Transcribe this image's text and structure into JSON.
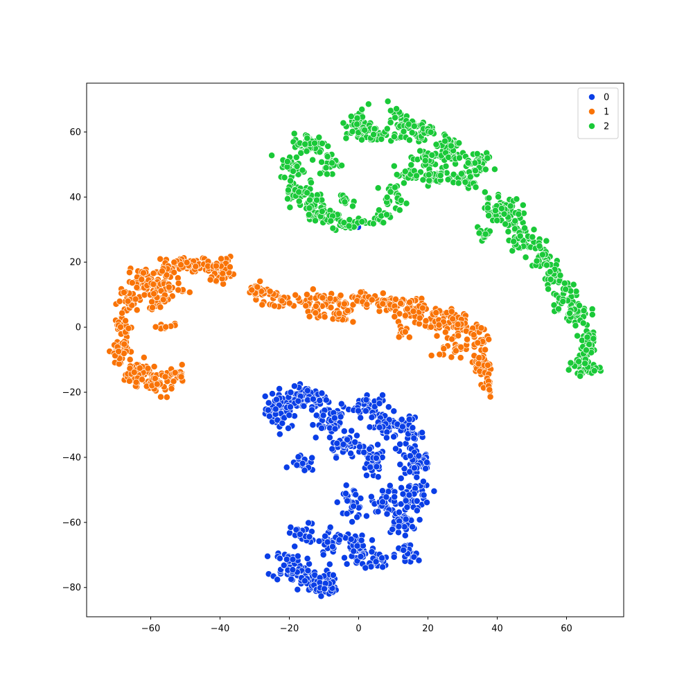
{
  "chart_data": {
    "type": "scatter",
    "title": "",
    "xlabel": "",
    "ylabel": "",
    "xlim": [
      -78.5,
      76.5
    ],
    "ylim": [
      -89,
      75
    ],
    "xticks": [
      -60,
      -40,
      -20,
      0,
      20,
      40,
      60
    ],
    "yticks": [
      -80,
      -60,
      -40,
      -20,
      0,
      20,
      40,
      60
    ],
    "grid": false,
    "legend_position": "top-right",
    "series": [
      {
        "name": "0",
        "color": "#0a3ee6",
        "clusters": [
          {
            "x": -22,
            "y": -25,
            "rx": 4,
            "ry": 5,
            "n": 60
          },
          {
            "x": -15,
            "y": -22,
            "rx": 5,
            "ry": 3,
            "n": 60
          },
          {
            "x": -8,
            "y": -28,
            "rx": 4,
            "ry": 4,
            "n": 45
          },
          {
            "x": -4,
            "y": -36,
            "rx": 4,
            "ry": 3,
            "n": 45
          },
          {
            "x": 2,
            "y": -24,
            "rx": 4,
            "ry": 3,
            "n": 40
          },
          {
            "x": 8,
            "y": -30,
            "rx": 4,
            "ry": 3,
            "n": 35
          },
          {
            "x": 14,
            "y": -33,
            "rx": 4,
            "ry": 4,
            "n": 40
          },
          {
            "x": 17,
            "y": -42,
            "rx": 4,
            "ry": 4,
            "n": 45
          },
          {
            "x": 4,
            "y": -42,
            "rx": 3,
            "ry": 4,
            "n": 35
          },
          {
            "x": -16,
            "y": -42,
            "rx": 3,
            "ry": 2,
            "n": 20
          },
          {
            "x": 16,
            "y": -52,
            "rx": 4,
            "ry": 4,
            "n": 50
          },
          {
            "x": 8,
            "y": -53,
            "rx": 3,
            "ry": 3,
            "n": 30
          },
          {
            "x": -2,
            "y": -54,
            "rx": 3,
            "ry": 4,
            "n": 35
          },
          {
            "x": 12,
            "y": -60,
            "rx": 4,
            "ry": 3,
            "n": 35
          },
          {
            "x": 14,
            "y": -70,
            "rx": 3,
            "ry": 3,
            "n": 25
          },
          {
            "x": 0,
            "y": -68,
            "rx": 4,
            "ry": 5,
            "n": 55
          },
          {
            "x": -8,
            "y": -66,
            "rx": 3,
            "ry": 4,
            "n": 30
          },
          {
            "x": 5,
            "y": -72,
            "rx": 3,
            "ry": 2,
            "n": 20
          },
          {
            "x": -20,
            "y": -73,
            "rx": 4,
            "ry": 4,
            "n": 50
          },
          {
            "x": -14,
            "y": -78,
            "rx": 5,
            "ry": 3,
            "n": 50
          },
          {
            "x": -10,
            "y": -80,
            "rx": 3,
            "ry": 2,
            "n": 30
          },
          {
            "x": -16,
            "y": -64,
            "rx": 3,
            "ry": 3,
            "n": 25
          },
          {
            "x": 0,
            "y": 31,
            "rx": 0.3,
            "ry": 0.3,
            "n": 2
          }
        ]
      },
      {
        "name": "1",
        "color": "#f97306",
        "clusters": [
          {
            "x": -48,
            "y": 19,
            "rx": 6,
            "ry": 2,
            "n": 60
          },
          {
            "x": -40,
            "y": 18,
            "rx": 3,
            "ry": 3,
            "n": 45
          },
          {
            "x": -56,
            "y": 17,
            "rx": 3,
            "ry": 3,
            "n": 30
          },
          {
            "x": -62,
            "y": 14,
            "rx": 4,
            "ry": 3,
            "n": 40
          },
          {
            "x": -66,
            "y": 8,
            "rx": 3,
            "ry": 3,
            "n": 30
          },
          {
            "x": -55,
            "y": 12,
            "rx": 4,
            "ry": 2,
            "n": 30
          },
          {
            "x": -58,
            "y": 8,
            "rx": 3,
            "ry": 2,
            "n": 20
          },
          {
            "x": -68,
            "y": 0,
            "rx": 2,
            "ry": 3,
            "n": 25
          },
          {
            "x": -69,
            "y": -7,
            "rx": 2,
            "ry": 3,
            "n": 40
          },
          {
            "x": -64,
            "y": -14,
            "rx": 3,
            "ry": 3,
            "n": 50
          },
          {
            "x": -58,
            "y": -17,
            "rx": 4,
            "ry": 3,
            "n": 55
          },
          {
            "x": -52,
            "y": -15,
            "rx": 2,
            "ry": 2,
            "n": 20
          },
          {
            "x": -56,
            "y": 0,
            "rx": 3,
            "ry": 1,
            "n": 10
          },
          {
            "x": -29,
            "y": 11,
            "rx": 3,
            "ry": 2,
            "n": 30
          },
          {
            "x": -22,
            "y": 8,
            "rx": 4,
            "ry": 2,
            "n": 30
          },
          {
            "x": -12,
            "y": 7,
            "rx": 4,
            "ry": 3,
            "n": 35
          },
          {
            "x": -5,
            "y": 6,
            "rx": 3,
            "ry": 4,
            "n": 35
          },
          {
            "x": 2,
            "y": 9,
            "rx": 4,
            "ry": 2,
            "n": 35
          },
          {
            "x": 8,
            "y": 7,
            "rx": 4,
            "ry": 2,
            "n": 35
          },
          {
            "x": 15,
            "y": 5,
            "rx": 4,
            "ry": 3,
            "n": 35
          },
          {
            "x": 22,
            "y": 2,
            "rx": 4,
            "ry": 3,
            "n": 35
          },
          {
            "x": 29,
            "y": 1,
            "rx": 4,
            "ry": 3,
            "n": 30
          },
          {
            "x": 27,
            "y": -6,
            "rx": 3,
            "ry": 3,
            "n": 25
          },
          {
            "x": 34,
            "y": -3,
            "rx": 3,
            "ry": 4,
            "n": 30
          },
          {
            "x": 36,
            "y": -12,
            "rx": 2,
            "ry": 4,
            "n": 30
          },
          {
            "x": 37,
            "y": -18,
            "rx": 1.5,
            "ry": 3,
            "n": 15
          },
          {
            "x": 13,
            "y": -1,
            "rx": 2,
            "ry": 2,
            "n": 12
          }
        ]
      },
      {
        "name": "2",
        "color": "#1ac938",
        "clusters": [
          {
            "x": -14,
            "y": 56,
            "rx": 4,
            "ry": 3,
            "n": 55
          },
          {
            "x": -19,
            "y": 49,
            "rx": 3,
            "ry": 3,
            "n": 30
          },
          {
            "x": -8,
            "y": 50,
            "rx": 3,
            "ry": 3,
            "n": 25
          },
          {
            "x": -18,
            "y": 42,
            "rx": 3,
            "ry": 4,
            "n": 35
          },
          {
            "x": -13,
            "y": 38,
            "rx": 3,
            "ry": 3,
            "n": 30
          },
          {
            "x": -10,
            "y": 34,
            "rx": 5,
            "ry": 2,
            "n": 35
          },
          {
            "x": -3,
            "y": 32,
            "rx": 4,
            "ry": 1.5,
            "n": 25
          },
          {
            "x": 6,
            "y": 34,
            "rx": 3,
            "ry": 2,
            "n": 15
          },
          {
            "x": 10,
            "y": 40,
            "rx": 3,
            "ry": 3,
            "n": 25
          },
          {
            "x": -3,
            "y": 39,
            "rx": 2,
            "ry": 2,
            "n": 10
          },
          {
            "x": 0,
            "y": 62,
            "rx": 3,
            "ry": 4,
            "n": 55
          },
          {
            "x": 6,
            "y": 59,
            "rx": 4,
            "ry": 2,
            "n": 25
          },
          {
            "x": 12,
            "y": 63,
            "rx": 3,
            "ry": 3,
            "n": 35
          },
          {
            "x": 18,
            "y": 60,
            "rx": 4,
            "ry": 3,
            "n": 35
          },
          {
            "x": 20,
            "y": 52,
            "rx": 4,
            "ry": 3,
            "n": 40
          },
          {
            "x": 26,
            "y": 55,
            "rx": 4,
            "ry": 4,
            "n": 40
          },
          {
            "x": 22,
            "y": 46,
            "rx": 4,
            "ry": 2,
            "n": 25
          },
          {
            "x": 30,
            "y": 46,
            "rx": 4,
            "ry": 3,
            "n": 30
          },
          {
            "x": 35,
            "y": 50,
            "rx": 3,
            "ry": 3,
            "n": 30
          },
          {
            "x": 14,
            "y": 47,
            "rx": 3,
            "ry": 2,
            "n": 20
          },
          {
            "x": 40,
            "y": 37,
            "rx": 3,
            "ry": 4,
            "n": 35
          },
          {
            "x": 44,
            "y": 34,
            "rx": 4,
            "ry": 4,
            "n": 40
          },
          {
            "x": 36,
            "y": 29,
            "rx": 2,
            "ry": 2,
            "n": 15
          },
          {
            "x": 48,
            "y": 27,
            "rx": 4,
            "ry": 3,
            "n": 40
          },
          {
            "x": 53,
            "y": 22,
            "rx": 3,
            "ry": 3,
            "n": 25
          },
          {
            "x": 56,
            "y": 16,
            "rx": 2,
            "ry": 4,
            "n": 30
          },
          {
            "x": 59,
            "y": 10,
            "rx": 3,
            "ry": 4,
            "n": 35
          },
          {
            "x": 63,
            "y": 4,
            "rx": 3,
            "ry": 3,
            "n": 30
          },
          {
            "x": 66,
            "y": -4,
            "rx": 2,
            "ry": 4,
            "n": 35
          },
          {
            "x": 66,
            "y": -12,
            "rx": 2.5,
            "ry": 4,
            "n": 35
          },
          {
            "x": 62,
            "y": -11,
            "rx": 2,
            "ry": 1.5,
            "n": 10
          }
        ]
      }
    ]
  }
}
